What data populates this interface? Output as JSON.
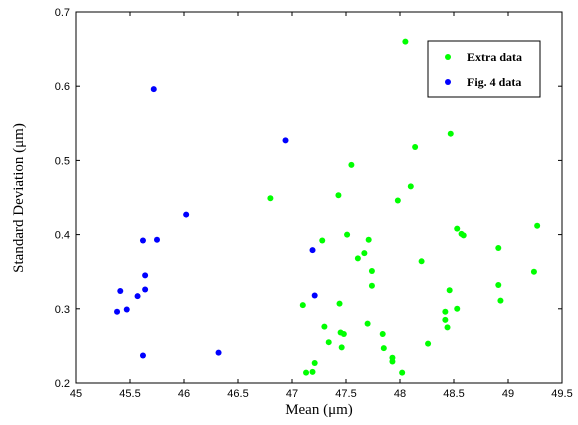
{
  "chart_data": {
    "type": "scatter",
    "xlabel": "Mean (μm)",
    "ylabel": "Standard Deviation (μm)",
    "xlim": [
      45,
      49.5
    ],
    "ylim": [
      0.2,
      0.7
    ],
    "xticks": [
      45,
      45.5,
      46,
      46.5,
      47,
      47.5,
      48,
      48.5,
      49,
      49.5
    ],
    "yticks": [
      0.2,
      0.3,
      0.4,
      0.5,
      0.6,
      0.7
    ],
    "xtick_labels": [
      "45",
      "45.5",
      "46",
      "46.5",
      "47",
      "47.5",
      "48",
      "48.5",
      "49",
      "49.5"
    ],
    "ytick_labels": [
      "0.2",
      "0.3",
      "0.4",
      "0.5",
      "0.6",
      "0.7"
    ],
    "grid": false,
    "legend": "top-right",
    "series": [
      {
        "name": "Extra data",
        "color": "#00ff00",
        "points": [
          [
            48.05,
            0.66
          ],
          [
            48.47,
            0.536
          ],
          [
            47.55,
            0.494
          ],
          [
            48.14,
            0.518
          ],
          [
            48.1,
            0.465
          ],
          [
            47.43,
            0.453
          ],
          [
            47.98,
            0.446
          ],
          [
            46.8,
            0.449
          ],
          [
            48.53,
            0.408
          ],
          [
            49.27,
            0.412
          ],
          [
            48.57,
            0.401
          ],
          [
            48.59,
            0.399
          ],
          [
            47.51,
            0.4
          ],
          [
            47.28,
            0.392
          ],
          [
            47.71,
            0.393
          ],
          [
            47.67,
            0.375
          ],
          [
            47.61,
            0.368
          ],
          [
            48.2,
            0.364
          ],
          [
            48.91,
            0.382
          ],
          [
            47.74,
            0.351
          ],
          [
            49.24,
            0.35
          ],
          [
            48.91,
            0.332
          ],
          [
            47.74,
            0.331
          ],
          [
            48.46,
            0.325
          ],
          [
            48.93,
            0.311
          ],
          [
            47.1,
            0.305
          ],
          [
            47.44,
            0.307
          ],
          [
            48.53,
            0.3
          ],
          [
            48.42,
            0.296
          ],
          [
            48.42,
            0.285
          ],
          [
            47.7,
            0.28
          ],
          [
            47.3,
            0.276
          ],
          [
            48.44,
            0.275
          ],
          [
            47.45,
            0.268
          ],
          [
            47.48,
            0.266
          ],
          [
            47.84,
            0.266
          ],
          [
            47.34,
            0.255
          ],
          [
            48.26,
            0.253
          ],
          [
            47.46,
            0.248
          ],
          [
            47.85,
            0.247
          ],
          [
            47.93,
            0.234
          ],
          [
            47.93,
            0.229
          ],
          [
            47.21,
            0.227
          ],
          [
            47.13,
            0.214
          ],
          [
            47.19,
            0.215
          ],
          [
            48.02,
            0.214
          ]
        ]
      },
      {
        "name": "Fig. 4 data",
        "color": "#0000ff",
        "points": [
          [
            45.72,
            0.596
          ],
          [
            46.94,
            0.527
          ],
          [
            46.02,
            0.427
          ],
          [
            45.62,
            0.392
          ],
          [
            45.75,
            0.393
          ],
          [
            47.19,
            0.379
          ],
          [
            45.64,
            0.345
          ],
          [
            45.41,
            0.324
          ],
          [
            45.64,
            0.326
          ],
          [
            45.57,
            0.317
          ],
          [
            47.21,
            0.318
          ],
          [
            45.47,
            0.299
          ],
          [
            45.38,
            0.296
          ],
          [
            46.32,
            0.241
          ],
          [
            45.62,
            0.237
          ]
        ]
      }
    ]
  }
}
